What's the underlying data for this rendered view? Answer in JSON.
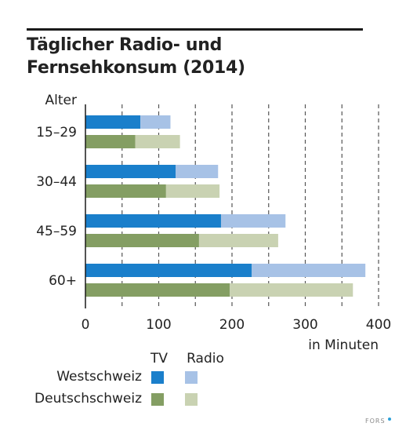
{
  "chart_data": {
    "type": "bar",
    "orientation": "horizontal",
    "stacked": true,
    "title": "Täglicher Radio- und Fernsehkonsum (2014)",
    "ylabel": "Alter",
    "xlabel": "in Minuten",
    "categories": [
      "15–29",
      "30–44",
      "45–59",
      "60+"
    ],
    "xlim": [
      0,
      400
    ],
    "xticks": [
      0,
      100,
      200,
      300,
      400
    ],
    "grid": "dashed vertical at 50-minute intervals",
    "series": [
      {
        "region": "Westschweiz",
        "tv": [
          75,
          123,
          185,
          227
        ],
        "radio": [
          41,
          58,
          88,
          155
        ],
        "tv_color": "#1a7fcb",
        "radio_color": "#a7c2e6"
      },
      {
        "region": "Deutschschweiz",
        "tv": [
          68,
          110,
          155,
          197
        ],
        "radio": [
          61,
          73,
          108,
          168
        ],
        "tv_color": "#849e63",
        "radio_color": "#c9d2b2"
      }
    ],
    "legend": {
      "col_tv": "TV",
      "col_radio": "Radio",
      "rows": [
        "Westschweiz",
        "Deutschschweiz"
      ],
      "placement": "bottom-left"
    }
  },
  "credit": "FORS"
}
